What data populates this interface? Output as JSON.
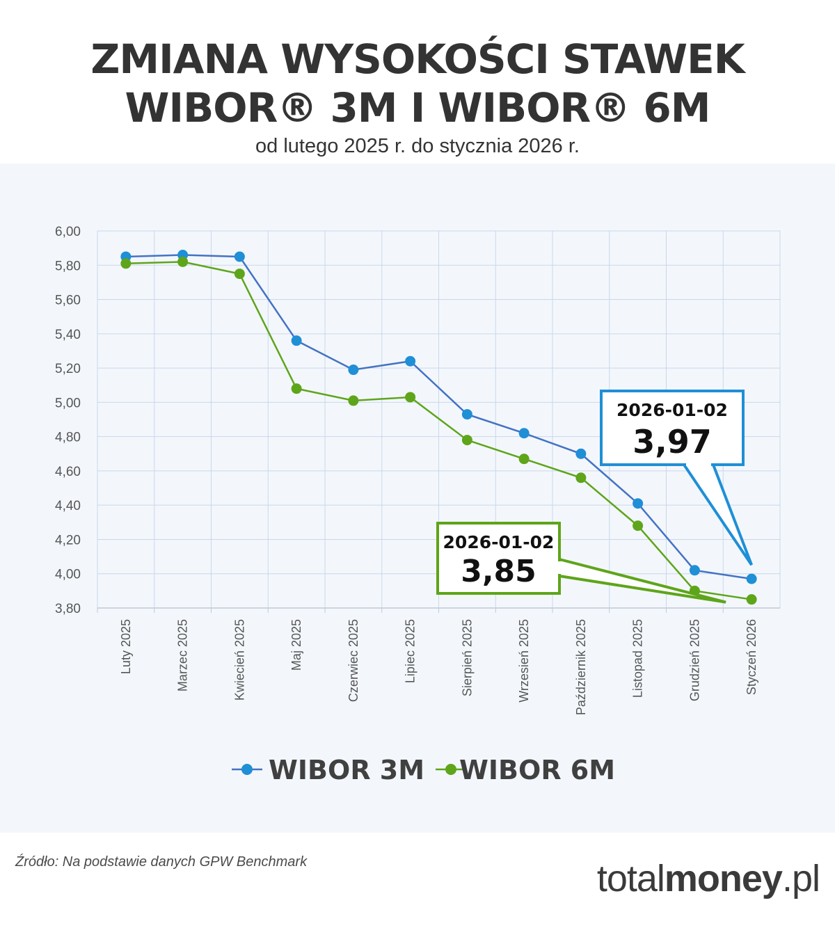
{
  "header": {
    "title_line1": "ZMIANA WYSOKOŚCI STAWEK",
    "title_line2": "WIBOR® 3M I WIBOR® 6M",
    "subtitle": "od lutego 2025 r. do stycznia 2026 r."
  },
  "footer": {
    "source": "Źródło: Na podstawie danych GPW Benchmark",
    "brand_light": "total",
    "brand_bold": "money",
    "brand_suffix": ".pl"
  },
  "chart_data": {
    "type": "line",
    "categories": [
      "Luty 2025",
      "Marzec 2025",
      "Kwiecień 2025",
      "Maj 2025",
      "Czerwiec 2025",
      "Lipiec 2025",
      "Sierpień 2025",
      "Wrzesień 2025",
      "Październik 2025",
      "Listopad 2025",
      "Grudzień 2025",
      "Styczeń 2026"
    ],
    "series": [
      {
        "name": "WIBOR 3M",
        "color": "#1f8fd6",
        "line_color": "#4472c4",
        "values": [
          5.85,
          5.86,
          5.85,
          5.36,
          5.19,
          5.24,
          4.93,
          4.82,
          4.7,
          4.41,
          4.02,
          3.97
        ]
      },
      {
        "name": "WIBOR 6M",
        "color": "#5ea51a",
        "line_color": "#5ea51a",
        "values": [
          5.81,
          5.82,
          5.75,
          5.08,
          5.01,
          5.03,
          4.78,
          4.67,
          4.56,
          4.28,
          3.9,
          3.85
        ]
      }
    ],
    "ylim": [
      3.8,
      6.0
    ],
    "yticks": [
      "6,00",
      "5,80",
      "5,60",
      "5,40",
      "5,20",
      "5,00",
      "4,80",
      "4,60",
      "4,40",
      "4,20",
      "4,00",
      "3,80"
    ],
    "ytick_values": [
      6.0,
      5.8,
      5.6,
      5.4,
      5.2,
      5.0,
      4.8,
      4.6,
      4.4,
      4.2,
      4.0,
      3.8
    ],
    "grid": true,
    "legend": "bottom-center",
    "annotations": [
      {
        "series": "WIBOR 3M",
        "date": "2026-01-02",
        "value": "3,97",
        "color": "#1f8fd6"
      },
      {
        "series": "WIBOR 6M",
        "date": "2026-01-02",
        "value": "3,85",
        "color": "#5ea51a"
      }
    ]
  }
}
